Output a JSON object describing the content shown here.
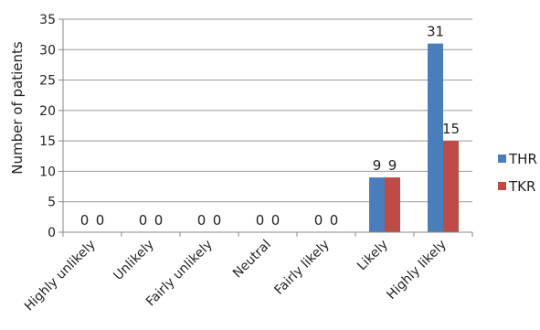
{
  "chart_data": {
    "type": "bar",
    "title": "",
    "xlabel": "",
    "ylabel": "Number of patients",
    "ylim": [
      0,
      35
    ],
    "yticks": [
      0,
      5,
      10,
      15,
      20,
      25,
      30,
      35
    ],
    "grid": true,
    "legend_position": "right",
    "categories": [
      "Highly unlikely",
      "Unlikely",
      "Fairly unlikely",
      "Neutral",
      "Fairly likely",
      "Likely",
      "Highly likely"
    ],
    "series": [
      {
        "name": "THR",
        "color": "#4a7ebb",
        "values": [
          0,
          0,
          0,
          0,
          0,
          9,
          31
        ]
      },
      {
        "name": "TKR",
        "color": "#be4b48",
        "values": [
          0,
          0,
          0,
          0,
          0,
          9,
          15
        ]
      }
    ]
  }
}
